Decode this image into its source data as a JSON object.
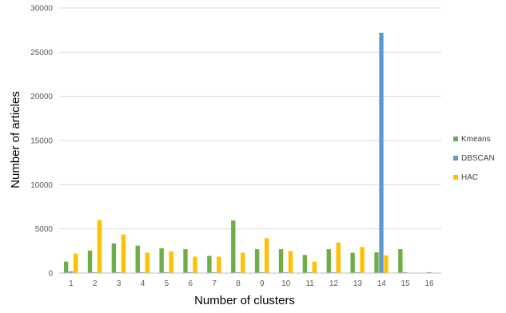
{
  "chart_data": {
    "type": "bar",
    "title": "",
    "xlabel": "Number of clusters",
    "ylabel": "Number of articles",
    "categories": [
      "1",
      "2",
      "3",
      "4",
      "5",
      "6",
      "7",
      "8",
      "9",
      "10",
      "11",
      "12",
      "13",
      "14",
      "15",
      "16"
    ],
    "ylim": [
      0,
      30000
    ],
    "yticks": [
      0,
      5000,
      10000,
      15000,
      20000,
      25000,
      30000
    ],
    "grid": true,
    "legend_position": "right",
    "series": [
      {
        "name": "Kmeans",
        "color": "#70ad47",
        "values": [
          1300,
          2550,
          3350,
          3100,
          2800,
          2700,
          1950,
          5950,
          2700,
          2700,
          2050,
          2700,
          2300,
          2350,
          2700,
          null
        ]
      },
      {
        "name": "DBSCAN",
        "color": "#5b9bd5",
        "values": [
          200,
          100,
          100,
          100,
          100,
          100,
          100,
          100,
          100,
          100,
          100,
          100,
          100,
          27200,
          100,
          100
        ]
      },
      {
        "name": "HAC",
        "color": "#ffc000",
        "values": [
          2200,
          6000,
          4350,
          2300,
          2450,
          1850,
          1850,
          2300,
          3950,
          2500,
          1300,
          3450,
          2950,
          2000,
          null,
          null
        ]
      }
    ]
  }
}
